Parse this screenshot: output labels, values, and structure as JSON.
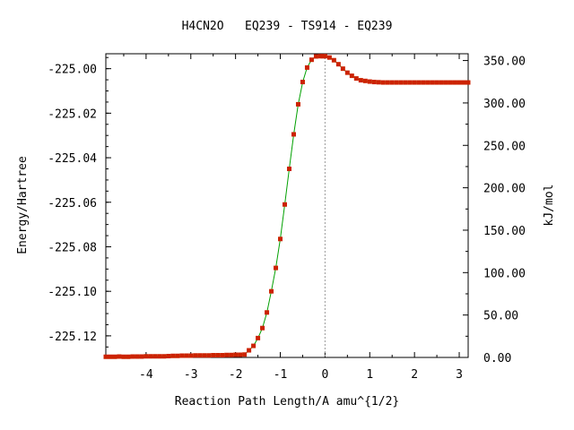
{
  "chart_data": {
    "type": "line",
    "title": "H4CN2O   EQ239 - TS914 - EQ239",
    "xlabel": "Reaction Path Length/A amu^{1/2}",
    "ylabel": "Energy/Hartree",
    "y2label": "kJ/mol",
    "xlim": [
      -4.9,
      3.2
    ],
    "ylim": [
      -225.1297,
      -224.9933
    ],
    "y2lim": [
      0,
      358
    ],
    "x_ticks": [
      -4,
      -3,
      -2,
      -1,
      0,
      1,
      2,
      3
    ],
    "x_tick_labels": [
      "-4",
      "-3",
      "-2",
      "-1",
      "0",
      "1",
      "2",
      "3"
    ],
    "y_ticks": [
      -225.12,
      -225.1,
      -225.08,
      -225.06,
      -225.04,
      -225.02,
      -225.0
    ],
    "y_tick_labels": [
      "-225.12",
      "-225.10",
      "-225.08",
      "-225.06",
      "-225.04",
      "-225.02",
      "-225.00"
    ],
    "y2_ticks": [
      0,
      50,
      100,
      150,
      200,
      250,
      300,
      350
    ],
    "y2_tick_labels": [
      "0.00",
      "50.00",
      "100.00",
      "150.00",
      "200.00",
      "250.00",
      "300.00",
      "350.00"
    ],
    "ts_x": 0,
    "grid": false,
    "colors": {
      "line": "#00a000",
      "marker": "#cc2200",
      "ts_line": "#999999"
    },
    "series": [
      {
        "x": [
          -4.9,
          -4.8,
          -4.7,
          -4.6,
          -4.5,
          -4.4,
          -4.3,
          -4.2,
          -4.1,
          -4.0,
          -3.9,
          -3.8,
          -3.7,
          -3.6,
          -3.5,
          -3.4,
          -3.3,
          -3.2,
          -3.1,
          -3.0,
          -2.9,
          -2.8,
          -2.7,
          -2.6,
          -2.5,
          -2.4,
          -2.3,
          -2.2,
          -2.1,
          -2.0,
          -1.9,
          -1.8,
          -1.7,
          -1.6,
          -1.5,
          -1.4,
          -1.3,
          -1.2,
          -1.1,
          -1.0,
          -0.9,
          -0.8,
          -0.7,
          -0.6,
          -0.5,
          -0.4,
          -0.3,
          -0.2,
          -0.1,
          -0.05,
          0.0,
          0.1,
          0.2,
          0.3,
          0.4,
          0.5,
          0.6,
          0.7,
          0.8,
          0.9,
          1.0,
          1.1,
          1.2,
          1.3,
          1.4,
          1.5,
          1.6,
          1.7,
          1.8,
          1.9,
          2.0,
          2.1,
          2.2,
          2.3,
          2.4,
          2.5,
          2.6,
          2.7,
          2.8,
          2.9,
          3.0,
          3.1,
          3.2
        ],
        "y": [
          -225.1294,
          -225.1294,
          -225.1294,
          -225.1293,
          -225.1294,
          -225.1294,
          -225.1293,
          -225.1293,
          -225.1293,
          -225.1292,
          -225.1292,
          -225.1292,
          -225.1292,
          -225.1292,
          -225.1291,
          -225.129,
          -225.129,
          -225.1289,
          -225.1289,
          -225.1289,
          -225.1288,
          -225.1288,
          -225.1288,
          -225.1288,
          -225.1287,
          -225.1287,
          -225.1287,
          -225.1286,
          -225.1286,
          -225.1285,
          -225.1285,
          -225.1284,
          -225.1265,
          -225.1245,
          -225.121,
          -225.1165,
          -225.1095,
          -225.1,
          -225.0895,
          -225.0765,
          -225.061,
          -225.045,
          -225.0295,
          -225.016,
          -225.006,
          -224.9995,
          -224.996,
          -224.9945,
          -224.9944,
          -224.9944,
          -224.9944,
          -224.995,
          -224.9962,
          -224.998,
          -225.0,
          -225.0018,
          -225.0032,
          -225.0044,
          -225.0052,
          -225.0055,
          -225.0058,
          -225.006,
          -225.0061,
          -225.0062,
          -225.0062,
          -225.0062,
          -225.0062,
          -225.0062,
          -225.0062,
          -225.0062,
          -225.0062,
          -225.0062,
          -225.0062,
          -225.0062,
          -225.0062,
          -225.0062,
          -225.0062,
          -225.0062,
          -225.0062,
          -225.0062,
          -225.0062,
          -225.0062,
          -225.0062
        ]
      }
    ]
  }
}
